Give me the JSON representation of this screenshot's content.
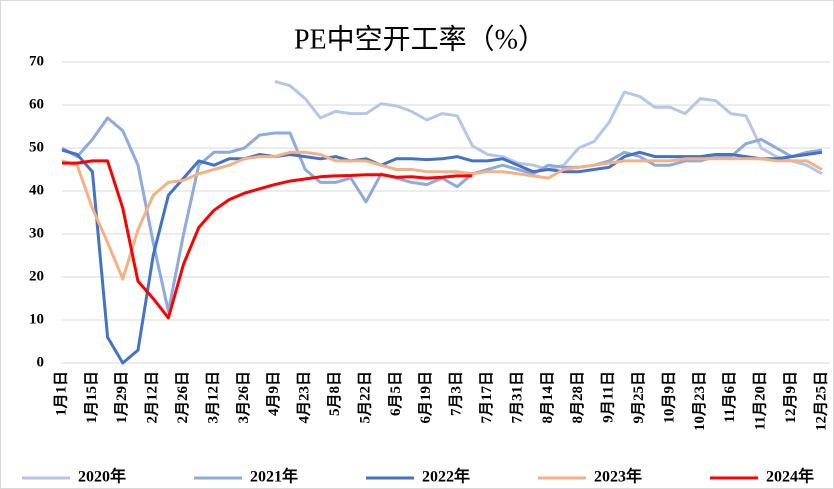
{
  "chart_data": {
    "type": "line",
    "title": "PE中空开工率（%）",
    "categories": [
      "1月1日",
      null,
      "1月15日",
      null,
      "1月29日",
      null,
      "2月12日",
      null,
      "2月26日",
      null,
      "3月12日",
      null,
      "3月26日",
      null,
      "4月9日",
      null,
      "4月23日",
      null,
      "5月8日",
      null,
      "5月22日",
      null,
      "6月5日",
      null,
      "6月19日",
      null,
      "7月3日",
      null,
      "7月17日",
      null,
      "7月31日",
      null,
      "8月14日",
      null,
      "8月28日",
      null,
      "9月11日",
      null,
      "9月25日",
      null,
      "10月9日",
      null,
      "10月23日",
      null,
      "11月6日",
      null,
      "11月20日",
      null,
      "12月9日",
      null,
      "12月25日"
    ],
    "ylim": [
      0,
      70
    ],
    "yticks": [
      0,
      10,
      20,
      30,
      40,
      50,
      60,
      70
    ],
    "grid": true,
    "legend": "bottom",
    "series": [
      {
        "name": "2020年",
        "color": "#b4c7e7",
        "values": [
          null,
          null,
          null,
          null,
          null,
          null,
          null,
          null,
          null,
          null,
          null,
          null,
          null,
          null,
          65.5,
          64.5,
          61.5,
          57,
          58.5,
          58,
          58,
          60.3,
          59.8,
          58.5,
          56.5,
          58,
          57.5,
          50.5,
          48.5,
          48,
          46.5,
          46,
          45,
          46,
          50,
          51.5,
          56,
          63,
          62,
          59.5,
          59.5,
          58,
          61.5,
          61,
          58,
          57.5,
          50,
          48,
          47,
          46,
          44
        ]
      },
      {
        "name": "2021年",
        "color": "#8faadc",
        "values": [
          50,
          48,
          52,
          57,
          54,
          46,
          28,
          12,
          30,
          46,
          49,
          49,
          50,
          53,
          53.5,
          53.5,
          45,
          42,
          42,
          43,
          37.5,
          44,
          43,
          42,
          41.5,
          43,
          41,
          44,
          45,
          46,
          45,
          44,
          46,
          45.5,
          45.5,
          46,
          47,
          49,
          48,
          46,
          46,
          47,
          47,
          48,
          48,
          51,
          52,
          50,
          48,
          49,
          49.5
        ]
      },
      {
        "name": "2022年",
        "color": "#4472c4",
        "values": [
          49.5,
          48.5,
          44.5,
          6,
          0,
          3,
          25,
          39,
          43,
          47,
          46,
          47.5,
          47.5,
          48.5,
          48,
          48.5,
          48,
          47.5,
          48,
          47,
          47.5,
          46,
          47.5,
          47.5,
          47.3,
          47.5,
          48,
          47,
          47,
          47.5,
          46,
          44.5,
          45,
          44.5,
          44.5,
          45,
          45.5,
          48,
          49,
          48,
          48,
          48,
          48,
          48.5,
          48.5,
          48,
          47.5,
          47.5,
          48,
          48.5,
          49
        ]
      },
      {
        "name": "2023年",
        "color": "#f4b183",
        "values": [
          47,
          46,
          36,
          28,
          19.5,
          31,
          39,
          42,
          42.5,
          44,
          45,
          46,
          47.5,
          48,
          48,
          49,
          49,
          48.5,
          47,
          47,
          47,
          46,
          45,
          45,
          44.5,
          44.5,
          44.5,
          44,
          44.5,
          44.5,
          44,
          43.5,
          43,
          45,
          45.5,
          46,
          46.5,
          47,
          47,
          47,
          47,
          47.5,
          47.5,
          47.5,
          47.5,
          47.5,
          47.5,
          47,
          47,
          47,
          45
        ]
      },
      {
        "name": "2024年",
        "color": "#ff0000",
        "values": [
          46.5,
          46.5,
          47,
          47,
          36,
          19,
          15,
          10.5,
          23,
          31.5,
          35.5,
          38,
          39.5,
          40.5,
          41.5,
          42.3,
          42.8,
          43.3,
          43.5,
          43.6,
          43.8,
          43.8,
          43.2,
          43.3,
          43,
          43.2,
          43.5,
          43.5,
          null,
          null,
          null,
          null,
          null,
          null,
          null,
          null,
          null,
          null,
          null,
          null,
          null,
          null,
          null,
          null,
          null,
          null,
          null,
          null,
          null,
          null,
          null
        ]
      }
    ]
  }
}
